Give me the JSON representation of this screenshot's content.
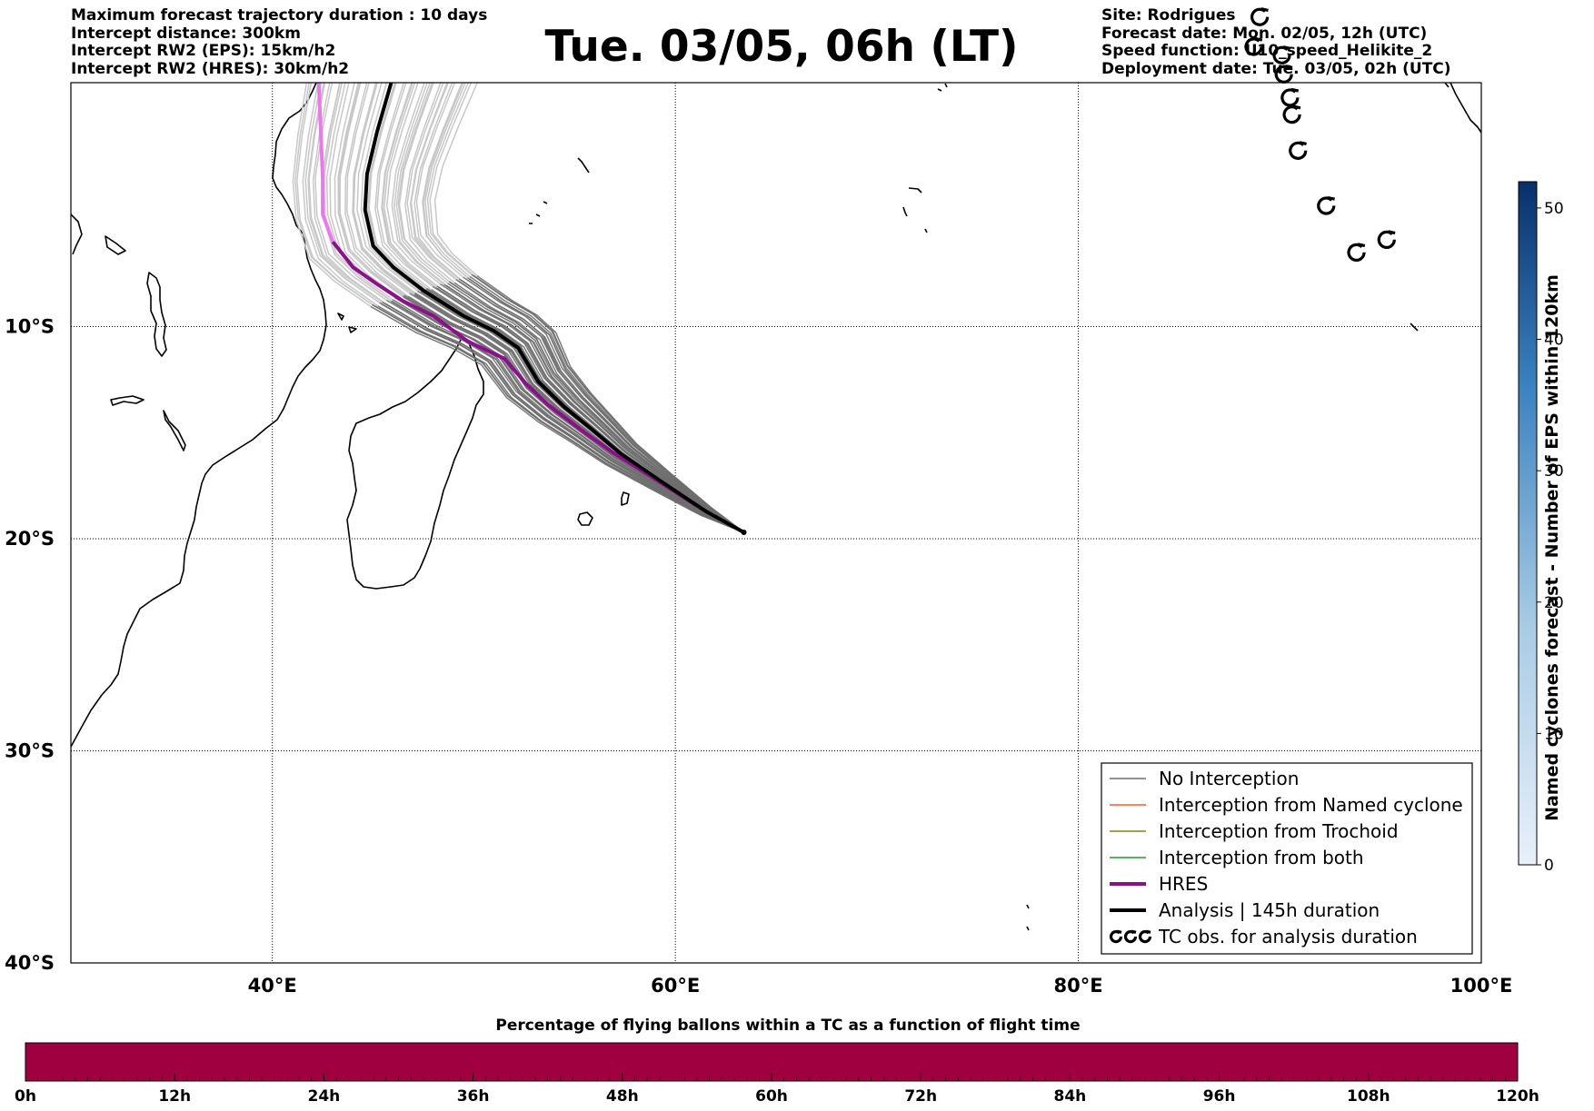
{
  "header": {
    "left": [
      "Maximum forecast trajectory duration : 10 days",
      "Intercept distance: 300km",
      "Intercept RW2 (EPS):  15km/h2",
      "Intercept RW2 (HRES): 30km/h2"
    ],
    "title": "Tue. 03/05, 06h (LT)",
    "right": [
      "Site: Rodrigues",
      "Forecast date: Mon. 02/05, 12h (UTC)",
      "Speed function: U10_speed_Helikite_2",
      "Deployment date: Tue. 03/05, 02h (UTC)"
    ]
  },
  "map": {
    "lon_range": [
      30,
      100
    ],
    "lat_range": [
      -40,
      1.5
    ],
    "lon_ticks": [
      {
        "v": 40,
        "label": "40°E"
      },
      {
        "v": 60,
        "label": "60°E"
      },
      {
        "v": 80,
        "label": "80°E"
      },
      {
        "v": 100,
        "label": "100°E"
      }
    ],
    "lat_ticks": [
      {
        "v": -10,
        "label": "10°S"
      },
      {
        "v": -20,
        "label": "20°S"
      },
      {
        "v": -30,
        "label": "30°S"
      },
      {
        "v": -40,
        "label": "40°S"
      }
    ],
    "launch_site": {
      "lon": 63.4,
      "lat": -19.7
    },
    "colors": {
      "no_interception": "#6e6e6e",
      "no_interception_light": "#c8c8c8",
      "named_cyclone": "#ff5a1f",
      "trochoid": "#8c7f1a",
      "both": "#1f9e2a",
      "hres": "#8e0f8e",
      "hres_light": "#ee77ee",
      "analysis": "#000000"
    }
  },
  "legend": {
    "items": [
      {
        "label": "No Interception",
        "style": "no_interception"
      },
      {
        "label": "Interception from Named cyclone",
        "style": "named_cyclone"
      },
      {
        "label": "Interception from Trochoid",
        "style": "trochoid"
      },
      {
        "label": "Interception from both",
        "style": "both"
      },
      {
        "label": "HRES",
        "style": "hres"
      },
      {
        "label": "Analysis | 145h duration",
        "style": "analysis"
      },
      {
        "label": "TC obs. for analysis duration",
        "style": "tc_symbol"
      }
    ]
  },
  "tc_observations": [
    {
      "lon": 89.0,
      "lat": 4.6
    },
    {
      "lon": 88.7,
      "lat": 3.2
    },
    {
      "lon": 90.1,
      "lat": 2.8
    },
    {
      "lon": 90.2,
      "lat": 1.9
    },
    {
      "lon": 90.5,
      "lat": 0.8
    },
    {
      "lon": 90.6,
      "lat": 0.0
    },
    {
      "lon": 90.9,
      "lat": -1.7
    },
    {
      "lon": 92.3,
      "lat": -4.3
    },
    {
      "lon": 93.8,
      "lat": -6.5
    },
    {
      "lon": 95.3,
      "lat": -5.9
    }
  ],
  "colorbar_right": {
    "label": "Named cyclones forecast - Number of EPS within 120km",
    "min": 0,
    "max": 52,
    "ticks": [
      0,
      10,
      20,
      30,
      40,
      50
    ],
    "color_low": "#e8f0fa",
    "color_high": "#08306b"
  },
  "colorbar_bottom": {
    "title": "Percentage of flying ballons within a TC as a function of flight time",
    "fill_color": "#a00040",
    "ticks": [
      "0h",
      "12h",
      "24h",
      "36h",
      "48h",
      "60h",
      "72h",
      "84h",
      "96h",
      "108h",
      "120h"
    ]
  },
  "chart_data": {
    "type": "line",
    "series": [
      {
        "name": "HRES",
        "points": [
          [
            63.4,
            -19.7
          ],
          [
            61.5,
            -18.7
          ],
          [
            59,
            -17.2
          ],
          [
            57,
            -16
          ],
          [
            55.5,
            -15
          ],
          [
            53.7,
            -13.7
          ],
          [
            52.6,
            -12.7
          ],
          [
            51.5,
            -11.5
          ],
          [
            49.7,
            -10.7
          ],
          [
            48,
            -9.5
          ],
          [
            46.5,
            -8.8
          ],
          [
            45.2,
            -8
          ],
          [
            44,
            -7.2
          ],
          [
            43,
            -6
          ],
          [
            42.5,
            -4.7
          ],
          [
            42.5,
            -3
          ],
          [
            42.3,
            1.5
          ]
        ]
      },
      {
        "name": "Analysis | 145h duration",
        "points": [
          [
            63.4,
            -19.7
          ],
          [
            61.5,
            -18.7
          ],
          [
            59.3,
            -17.3
          ],
          [
            57.3,
            -16
          ],
          [
            55.8,
            -14.8
          ],
          [
            54.5,
            -13.8
          ],
          [
            53.2,
            -12.6
          ],
          [
            52.2,
            -11
          ],
          [
            51,
            -10.2
          ],
          [
            49.5,
            -9.5
          ],
          [
            47.5,
            -8.3
          ],
          [
            46,
            -7.2
          ],
          [
            45,
            -6.2
          ],
          [
            44.6,
            -4.5
          ],
          [
            44.7,
            -2.8
          ],
          [
            45.2,
            -0.8
          ],
          [
            45.9,
            1.5
          ]
        ]
      }
    ]
  }
}
